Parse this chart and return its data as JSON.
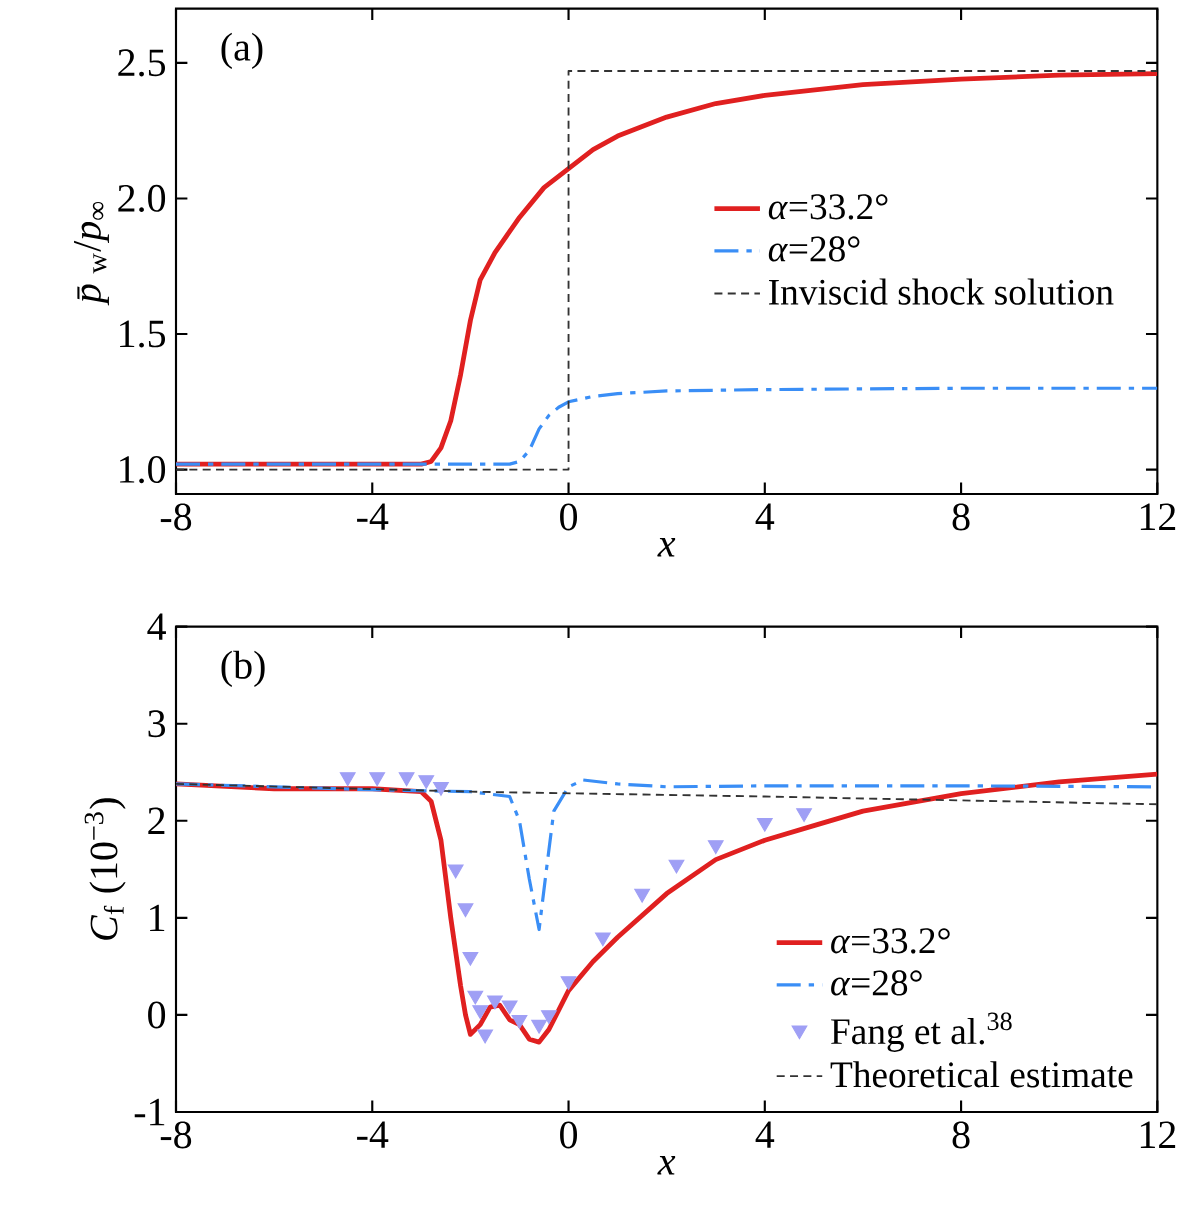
{
  "chart_data": [
    {
      "type": "line",
      "xlabel": "*x*",
      "ylabel": "*p̄*$_{w}$/*p*$_{∞}$",
      "annotations": [
        "(a)"
      ],
      "xlim": [
        -8,
        12
      ],
      "ylim": [
        0.91,
        2.7
      ],
      "xticks": [
        -8,
        -4,
        0,
        4,
        8,
        12
      ],
      "yticks": [
        {
          "value": 1,
          "label": "1.0"
        },
        1.5,
        {
          "value": 2,
          "label": "2.0"
        },
        2.5
      ],
      "grid": false,
      "legend": "right",
      "series": [
        {
          "name": "*α*=33.2°",
          "color": "#e02020",
          "line_style": "solid",
          "x": [
            -8,
            -6,
            -4,
            -3,
            -2.8,
            -2.6,
            -2.4,
            -2.2,
            -2,
            -1.8,
            -1.5,
            -1,
            -0.5,
            0,
            0.5,
            1,
            2,
            3,
            4,
            6,
            8,
            10,
            12
          ],
          "values": [
            1.02,
            1.02,
            1.02,
            1.02,
            1.03,
            1.08,
            1.18,
            1.35,
            1.55,
            1.7,
            1.8,
            1.93,
            2.04,
            2.11,
            2.18,
            2.23,
            2.3,
            2.35,
            2.38,
            2.42,
            2.44,
            2.455,
            2.46
          ]
        },
        {
          "name": "*α*=28°",
          "color": "#3a8ef6",
          "line_style": "dashdot",
          "x": [
            -8,
            -4,
            -1.2,
            -1,
            -0.8,
            -0.6,
            -0.4,
            -0.2,
            0,
            0.5,
            1,
            2,
            4,
            8,
            12
          ],
          "values": [
            1.02,
            1.02,
            1.02,
            1.03,
            1.07,
            1.15,
            1.2,
            1.23,
            1.25,
            1.27,
            1.28,
            1.29,
            1.295,
            1.3,
            1.3
          ]
        },
        {
          "name": "Inviscid shock solution",
          "color": "#333333",
          "line_style": "dashed",
          "x": [
            -8,
            0,
            0,
            12
          ],
          "values": [
            1.0,
            1.0,
            2.47,
            2.47
          ]
        }
      ]
    },
    {
      "type": "line",
      "xlabel": "*x*",
      "ylabel": "*C*$_{f}$ (10$^{−3}$)",
      "annotations": [
        "(b)"
      ],
      "xlim": [
        -8,
        12
      ],
      "ylim": [
        -1,
        4
      ],
      "xticks": [
        -8,
        -4,
        0,
        4,
        8,
        12
      ],
      "yticks": [
        -1,
        0,
        1,
        2,
        3,
        4
      ],
      "grid": false,
      "legend": "bottom right",
      "series": [
        {
          "name": "*α*=33.2°",
          "color": "#e02020",
          "line_style": "solid",
          "x": [
            -8,
            -6,
            -4,
            -3,
            -2.8,
            -2.6,
            -2.4,
            -2.2,
            -2.1,
            -2.0,
            -1.8,
            -1.6,
            -1.4,
            -1.2,
            -1.0,
            -0.8,
            -0.6,
            -0.4,
            0,
            0.5,
            1,
            2,
            3,
            4,
            5,
            6,
            8,
            10,
            12
          ],
          "values": [
            2.38,
            2.33,
            2.33,
            2.3,
            2.2,
            1.8,
            1.0,
            0.3,
            0.0,
            -0.2,
            -0.1,
            0.08,
            0.1,
            -0.05,
            -0.1,
            -0.25,
            -0.28,
            -0.15,
            0.25,
            0.55,
            0.8,
            1.25,
            1.6,
            1.8,
            1.95,
            2.1,
            2.28,
            2.4,
            2.48
          ]
        },
        {
          "name": "*α*=28°",
          "color": "#3a8ef6",
          "line_style": "dashdot",
          "x": [
            -8,
            -4,
            -2,
            -1.2,
            -1,
            -0.8,
            -0.6,
            -0.45,
            -0.3,
            0,
            0.3,
            1,
            2,
            4,
            8,
            12
          ],
          "values": [
            2.38,
            2.32,
            2.3,
            2.25,
            2.0,
            1.4,
            0.88,
            1.5,
            2.1,
            2.35,
            2.42,
            2.38,
            2.35,
            2.36,
            2.36,
            2.35
          ]
        },
        {
          "name": "Fang et al.$^{38}$",
          "type": "scatter",
          "marker": "triangle",
          "color": "#9f9ff5",
          "x": [
            -4.5,
            -3.9,
            -3.3,
            -2.9,
            -2.6,
            -2.3,
            -2.1,
            -2.0,
            -1.9,
            -1.8,
            -1.7,
            -1.5,
            -1.2,
            -1.0,
            -0.6,
            -0.4,
            0,
            0.7,
            1.5,
            2.2,
            3.0,
            4.0,
            4.8
          ],
          "values": [
            2.45,
            2.45,
            2.45,
            2.42,
            2.35,
            1.5,
            1.1,
            0.6,
            0.2,
            0.05,
            -0.2,
            0.15,
            0.1,
            -0.05,
            -0.1,
            0.0,
            0.35,
            0.8,
            1.25,
            1.55,
            1.75,
            1.98,
            2.08
          ]
        },
        {
          "name": "Theoretical estimate",
          "color": "#333333",
          "line_style": "dashed",
          "x": [
            -8,
            -2,
            4,
            12
          ],
          "values": [
            2.38,
            2.3,
            2.25,
            2.17
          ]
        }
      ]
    }
  ]
}
